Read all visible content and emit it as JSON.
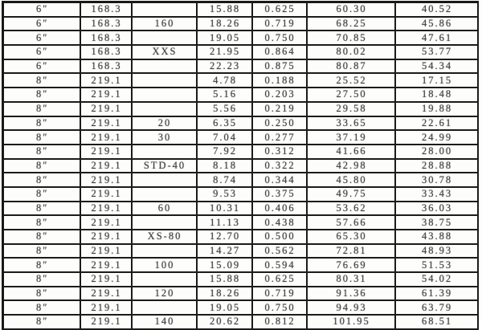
{
  "colors": {
    "border": "#1b1b1b",
    "text": "#454545",
    "background": "#fdfdfc"
  },
  "table": {
    "rows": [
      [
        "6″",
        "168.3",
        "",
        "15.88",
        "0.625",
        "60.30",
        "40.52"
      ],
      [
        "6″",
        "168.3",
        "160",
        "18.26",
        "0.719",
        "68.25",
        "45.86"
      ],
      [
        "6″",
        "168.3",
        "",
        "19.05",
        "0.750",
        "70.85",
        "47.61"
      ],
      [
        "6″",
        "168.3",
        "XXS",
        "21.95",
        "0.864",
        "80.02",
        "53.77"
      ],
      [
        "6″",
        "168.3",
        "",
        "22.23",
        "0.875",
        "80.87",
        "54.34"
      ],
      [
        "8″",
        "219.1",
        "",
        "4.78",
        "0.188",
        "25.52",
        "17.15"
      ],
      [
        "8″",
        "219.1",
        "",
        "5.16",
        "0.203",
        "27.50",
        "18.48"
      ],
      [
        "8″",
        "219.1",
        "",
        "5.56",
        "0.219",
        "29.58",
        "19.88"
      ],
      [
        "8″",
        "219.1",
        "20",
        "6.35",
        "0.250",
        "33.65",
        "22.61"
      ],
      [
        "8″",
        "219.1",
        "30",
        "7.04",
        "0.277",
        "37.19",
        "24.99"
      ],
      [
        "8″",
        "219.1",
        "",
        "7.92",
        "0.312",
        "41.66",
        "28.00"
      ],
      [
        "8″",
        "219.1",
        "STD-40",
        "8.18",
        "0.322",
        "42.98",
        "28.88"
      ],
      [
        "8″",
        "219.1",
        "",
        "8.74",
        "0.344",
        "45.80",
        "30.78"
      ],
      [
        "8″",
        "219.1",
        "",
        "9.53",
        "0.375",
        "49.75",
        "33.43"
      ],
      [
        "8″",
        "219.1",
        "60",
        "10.31",
        "0.406",
        "53.62",
        "36.03"
      ],
      [
        "8″",
        "219.1",
        "",
        "11.13",
        "0.438",
        "57.66",
        "38.75"
      ],
      [
        "8″",
        "219.1",
        "XS-80",
        "12.70",
        "0.500",
        "65.30",
        "43.88"
      ],
      [
        "8″",
        "219.1",
        "",
        "14.27",
        "0.562",
        "72.81",
        "48.93"
      ],
      [
        "8″",
        "219.1",
        "100",
        "15.09",
        "0.594",
        "76.69",
        "51.53"
      ],
      [
        "8″",
        "219.1",
        "",
        "15.88",
        "0.625",
        "80.31",
        "54.02"
      ],
      [
        "8″",
        "219.1",
        "120",
        "18.26",
        "0.719",
        "91.36",
        "61.39"
      ],
      [
        "8″",
        "219.1",
        "",
        "19.05",
        "0.750",
        "94.93",
        "63.79"
      ],
      [
        "8″",
        "219.1",
        "140",
        "20.62",
        "0.812",
        "101.95",
        "68.51"
      ]
    ]
  }
}
